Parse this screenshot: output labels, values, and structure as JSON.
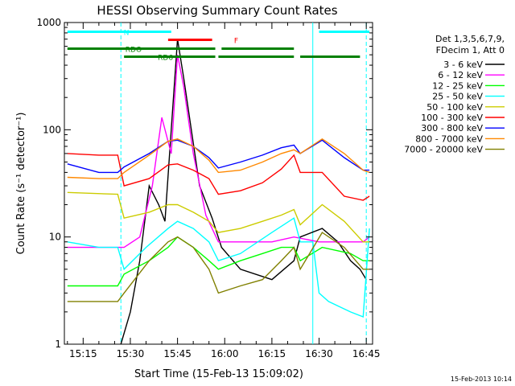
{
  "chart_data": {
    "type": "line",
    "title": "HESSI Observing Summary Count Rates",
    "xlabel": "Start Time (15-Feb-13 15:09:02)",
    "ylabel": "Count Rate (s⁻¹ detector⁻¹)",
    "y_scale": "log",
    "ylim": [
      1,
      1000
    ],
    "xlim": [
      "15:09:02",
      "16:47:00"
    ],
    "grid": false,
    "legend_position": "right",
    "x_ticks": [
      "15:15",
      "15:30",
      "15:45",
      "16:00",
      "16:15",
      "16:30",
      "16:45"
    ],
    "y_ticks": [
      "1",
      "10",
      "100",
      "1000"
    ],
    "legend_header": [
      "Det 1,3,5,6,7,9,",
      "FDecim 1, Att 0"
    ],
    "footer_date": "15-Feb-2013 10:14",
    "series": [
      {
        "name": "3 - 6 keV",
        "color": "#000000",
        "x": [
          "15:27",
          "15:30",
          "15:33",
          "15:36",
          "15:39",
          "15:41",
          "15:43",
          "15:45",
          "15:47",
          "15:49",
          "15:52",
          "15:56",
          "15:59",
          "16:05",
          "16:15",
          "16:22",
          "16:24",
          "16:31",
          "16:36",
          "16:40",
          "16:43",
          "16:45"
        ],
        "y": [
          1,
          2,
          6,
          30,
          20,
          14,
          100,
          700,
          300,
          120,
          30,
          15,
          8,
          5,
          4,
          6,
          10,
          12,
          9,
          6,
          5,
          4
        ]
      },
      {
        "name": "6 - 12 keV",
        "color": "#ff00ff",
        "x": [
          "15:10",
          "15:20",
          "15:26",
          "15:28",
          "15:33",
          "15:37",
          "15:40",
          "15:43",
          "15:45",
          "15:47",
          "15:50",
          "15:54",
          "15:58",
          "16:05",
          "16:15",
          "16:22",
          "16:30",
          "16:38",
          "16:44",
          "16:46"
        ],
        "y": [
          8,
          8,
          8,
          8,
          10,
          30,
          130,
          60,
          500,
          250,
          60,
          16,
          9,
          9,
          9,
          10,
          9,
          9,
          9,
          10
        ]
      },
      {
        "name": "12 - 25 keV",
        "color": "#00ff00",
        "x": [
          "15:10",
          "15:26",
          "15:28",
          "15:36",
          "15:42",
          "15:45",
          "15:50",
          "15:55",
          "15:58",
          "16:05",
          "16:12",
          "16:18",
          "16:22",
          "16:24",
          "16:31",
          "16:40",
          "16:44",
          "16:46"
        ],
        "y": [
          3.5,
          3.5,
          4.5,
          6,
          8,
          10,
          8,
          6,
          5,
          6,
          7,
          8,
          8,
          6,
          8,
          7,
          6,
          6
        ]
      },
      {
        "name": "25 - 50 keV",
        "color": "#00ffff",
        "x": [
          "15:10",
          "15:20",
          "15:26",
          "15:28",
          "15:35",
          "15:42",
          "15:45",
          "15:50",
          "15:55",
          "15:58",
          "16:05",
          "16:15",
          "16:22",
          "16:24",
          "16:28",
          "16:30",
          "16:33",
          "16:40",
          "16:44",
          "16:46"
        ],
        "y": [
          9,
          8,
          8,
          5,
          8,
          12,
          14,
          12,
          9,
          6,
          7,
          11,
          15,
          9,
          9,
          3,
          2.5,
          2,
          1.8,
          12
        ]
      },
      {
        "name": "50 - 100 keV",
        "color": "#cccc00",
        "x": [
          "15:10",
          "15:26",
          "15:28",
          "15:36",
          "15:42",
          "15:45",
          "15:50",
          "15:55",
          "15:58",
          "16:05",
          "16:12",
          "16:18",
          "16:22",
          "16:24",
          "16:31",
          "16:38",
          "16:44",
          "16:46"
        ],
        "y": [
          26,
          25,
          15,
          17,
          20,
          20,
          17,
          14,
          11,
          12,
          14,
          16,
          18,
          13,
          20,
          14,
          9,
          9
        ]
      },
      {
        "name": "100 - 300 keV",
        "color": "#ff0000",
        "x": [
          "15:10",
          "15:20",
          "15:26",
          "15:28",
          "15:36",
          "15:42",
          "15:45",
          "15:50",
          "15:55",
          "15:58",
          "16:05",
          "16:12",
          "16:18",
          "16:22",
          "16:24",
          "16:31",
          "16:38",
          "16:44",
          "16:46"
        ],
        "y": [
          60,
          58,
          58,
          30,
          35,
          47,
          48,
          42,
          35,
          25,
          27,
          32,
          43,
          58,
          40,
          40,
          24,
          22,
          24
        ]
      },
      {
        "name": "300 - 800 keV",
        "color": "#0000ff",
        "x": [
          "15:10",
          "15:20",
          "15:26",
          "15:28",
          "15:36",
          "15:42",
          "15:45",
          "15:50",
          "15:55",
          "15:58",
          "16:05",
          "16:12",
          "16:18",
          "16:22",
          "16:24",
          "16:31",
          "16:38",
          "16:44",
          "16:46"
        ],
        "y": [
          48,
          40,
          40,
          45,
          60,
          78,
          80,
          70,
          55,
          44,
          50,
          58,
          68,
          72,
          60,
          80,
          55,
          42,
          42
        ]
      },
      {
        "name": "800 - 7000 keV",
        "color": "#ff8800",
        "x": [
          "15:10",
          "15:20",
          "15:26",
          "15:28",
          "15:36",
          "15:42",
          "15:45",
          "15:50",
          "15:55",
          "15:58",
          "16:05",
          "16:12",
          "16:18",
          "16:22",
          "16:24",
          "16:31",
          "16:38",
          "16:44",
          "16:46"
        ],
        "y": [
          36,
          35,
          35,
          40,
          58,
          78,
          82,
          70,
          52,
          40,
          42,
          50,
          60,
          65,
          60,
          82,
          60,
          42,
          40
        ]
      },
      {
        "name": "7000 - 20000 keV",
        "color": "#808000",
        "x": [
          "15:10",
          "15:26",
          "15:28",
          "15:36",
          "15:42",
          "15:45",
          "15:50",
          "15:55",
          "15:58",
          "16:05",
          "16:12",
          "16:18",
          "16:22",
          "16:24",
          "16:31",
          "16:38",
          "16:44",
          "16:46"
        ],
        "y": [
          2.5,
          2.5,
          3,
          6,
          9,
          10,
          8,
          5,
          3,
          3.5,
          4,
          6,
          8,
          5,
          11,
          8,
          5,
          5
        ]
      }
    ],
    "flags": [
      {
        "label": "N",
        "color": "#00ffff",
        "y": 820,
        "segments": [
          [
            "15:10",
            "15:43"
          ],
          [
            "16:30",
            "16:46"
          ]
        ]
      },
      {
        "label": "F",
        "color": "#ff0000",
        "y": 690,
        "segments": [
          [
            "15:42",
            "15:56"
          ]
        ]
      },
      {
        "label": "RDO",
        "color": "#008000",
        "y": 570,
        "segments": [
          [
            "15:10",
            "15:57"
          ],
          [
            "15:59",
            "16:22"
          ]
        ]
      },
      {
        "label": "RD6",
        "color": "#008000",
        "y": 480,
        "segments": [
          [
            "15:28",
            "15:57"
          ],
          [
            "15:58",
            "16:22"
          ],
          [
            "16:24",
            "16:43"
          ]
        ]
      }
    ],
    "vertical_markers": [
      {
        "time": "15:27",
        "color": "#00ffff",
        "style": "dashed"
      },
      {
        "time": "16:28",
        "color": "#00ffff",
        "style": "solid"
      },
      {
        "time": "16:45",
        "color": "#00ffff",
        "style": "dashed"
      }
    ]
  }
}
